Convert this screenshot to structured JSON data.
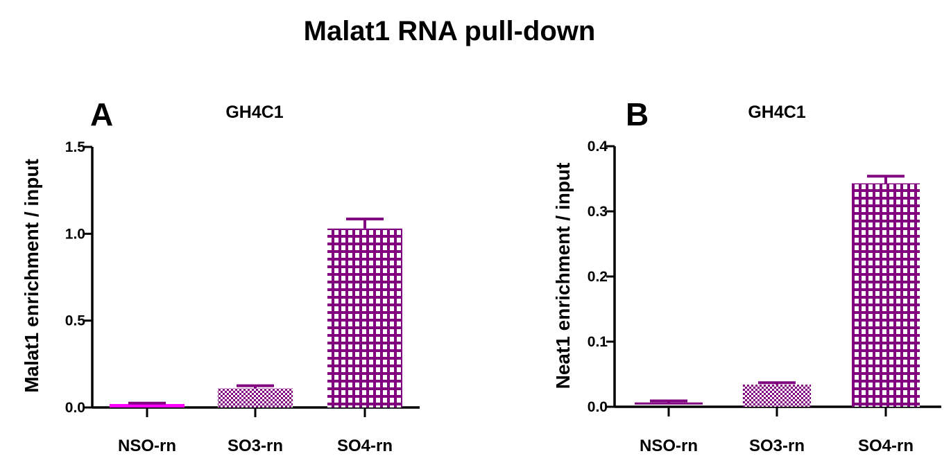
{
  "figure": {
    "title": "Malat1 RNA pull-down"
  },
  "colors": {
    "purple": "#800080",
    "magenta": "#ff00ff",
    "axis": "#000000"
  },
  "chart_data": [
    {
      "type": "bar",
      "panel_letter": "A",
      "title": "GH4C1",
      "ylabel": "Malat1 enrichment / input",
      "xlabel": "",
      "categories": [
        "NSO-rn",
        "SO3-rn",
        "SO4-rn"
      ],
      "values": [
        0.02,
        0.11,
        1.03
      ],
      "errors": [
        0.005,
        0.015,
        0.055
      ],
      "patterns": [
        "solid-magenta",
        "fine-check",
        "grid"
      ],
      "ylim": [
        0,
        1.5
      ],
      "yticks": [
        0.0,
        0.5,
        1.0,
        1.5
      ],
      "ytick_labels": [
        "0.0",
        "0.5",
        "1.0",
        "1.5"
      ]
    },
    {
      "type": "bar",
      "panel_letter": "B",
      "title": "GH4C1",
      "ylabel": "Neat1 enrichment / input",
      "xlabel": "",
      "categories": [
        "NSO-rn",
        "SO3-rn",
        "SO4-rn"
      ],
      "values": [
        0.005,
        0.034,
        0.343
      ],
      "errors": [
        0.004,
        0.003,
        0.011
      ],
      "patterns": [
        "outline",
        "fine-check",
        "grid"
      ],
      "ylim": [
        0,
        0.4
      ],
      "yticks": [
        0.0,
        0.1,
        0.2,
        0.3,
        0.4
      ],
      "ytick_labels": [
        "0.0",
        "0.1",
        "0.2",
        "0.3",
        "0.4"
      ]
    }
  ]
}
